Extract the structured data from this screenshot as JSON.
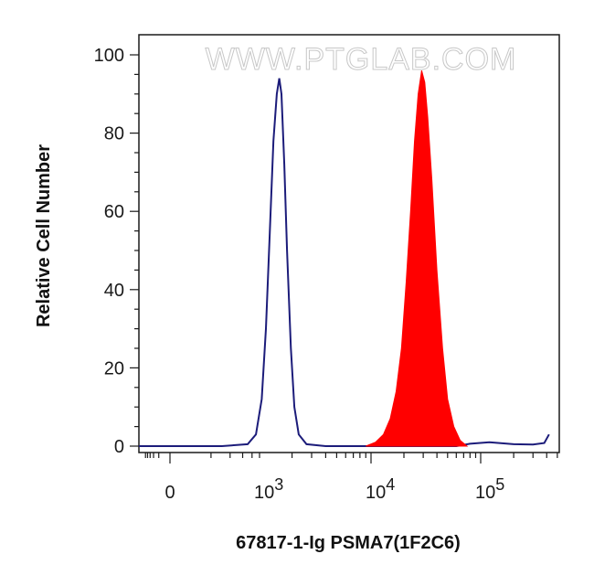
{
  "watermark": "WWW.PTGLAB.COM",
  "chart_data": {
    "type": "area",
    "title": "",
    "xlabel": "67817-1-Ig PSMA7(1F2C6)",
    "ylabel": "Relative Cell Number",
    "xscale": "biexponential",
    "ylim": [
      0,
      100
    ],
    "y_ticks": [
      0,
      20,
      40,
      60,
      80,
      100
    ],
    "x_ticks": [
      {
        "value": 0,
        "base": "0",
        "exp": ""
      },
      {
        "value": 1000,
        "base": "10",
        "exp": "3"
      },
      {
        "value": 10000,
        "base": "10",
        "exp": "4"
      },
      {
        "value": 100000,
        "base": "10",
        "exp": "5"
      }
    ],
    "grid": false,
    "legend": "none",
    "series": [
      {
        "style": "outline",
        "color": "#1c1c7a",
        "points": [
          [
            -2000,
            0
          ],
          [
            300,
            0
          ],
          [
            700,
            0.5
          ],
          [
            900,
            3
          ],
          [
            1050,
            12
          ],
          [
            1150,
            30
          ],
          [
            1250,
            55
          ],
          [
            1350,
            78
          ],
          [
            1450,
            90
          ],
          [
            1530,
            94
          ],
          [
            1600,
            90
          ],
          [
            1700,
            72
          ],
          [
            1800,
            50
          ],
          [
            1950,
            25
          ],
          [
            2100,
            10
          ],
          [
            2300,
            3
          ],
          [
            2700,
            0.5
          ],
          [
            4000,
            0
          ],
          [
            60000,
            0
          ],
          [
            80000,
            0.6
          ],
          [
            120000,
            1
          ],
          [
            200000,
            0.5
          ],
          [
            300000,
            0.4
          ],
          [
            380000,
            0.8
          ],
          [
            420000,
            3
          ]
        ]
      },
      {
        "style": "filled",
        "color": "#ff0000",
        "points": [
          [
            9000,
            0
          ],
          [
            11000,
            1
          ],
          [
            13000,
            3
          ],
          [
            15000,
            7
          ],
          [
            17000,
            14
          ],
          [
            19000,
            25
          ],
          [
            21000,
            42
          ],
          [
            23000,
            60
          ],
          [
            25000,
            78
          ],
          [
            27000,
            90
          ],
          [
            29000,
            96
          ],
          [
            31000,
            93
          ],
          [
            33000,
            84
          ],
          [
            36000,
            68
          ],
          [
            40000,
            45
          ],
          [
            45000,
            25
          ],
          [
            50000,
            12
          ],
          [
            57000,
            5
          ],
          [
            65000,
            1.5
          ],
          [
            75000,
            0
          ]
        ]
      }
    ]
  }
}
